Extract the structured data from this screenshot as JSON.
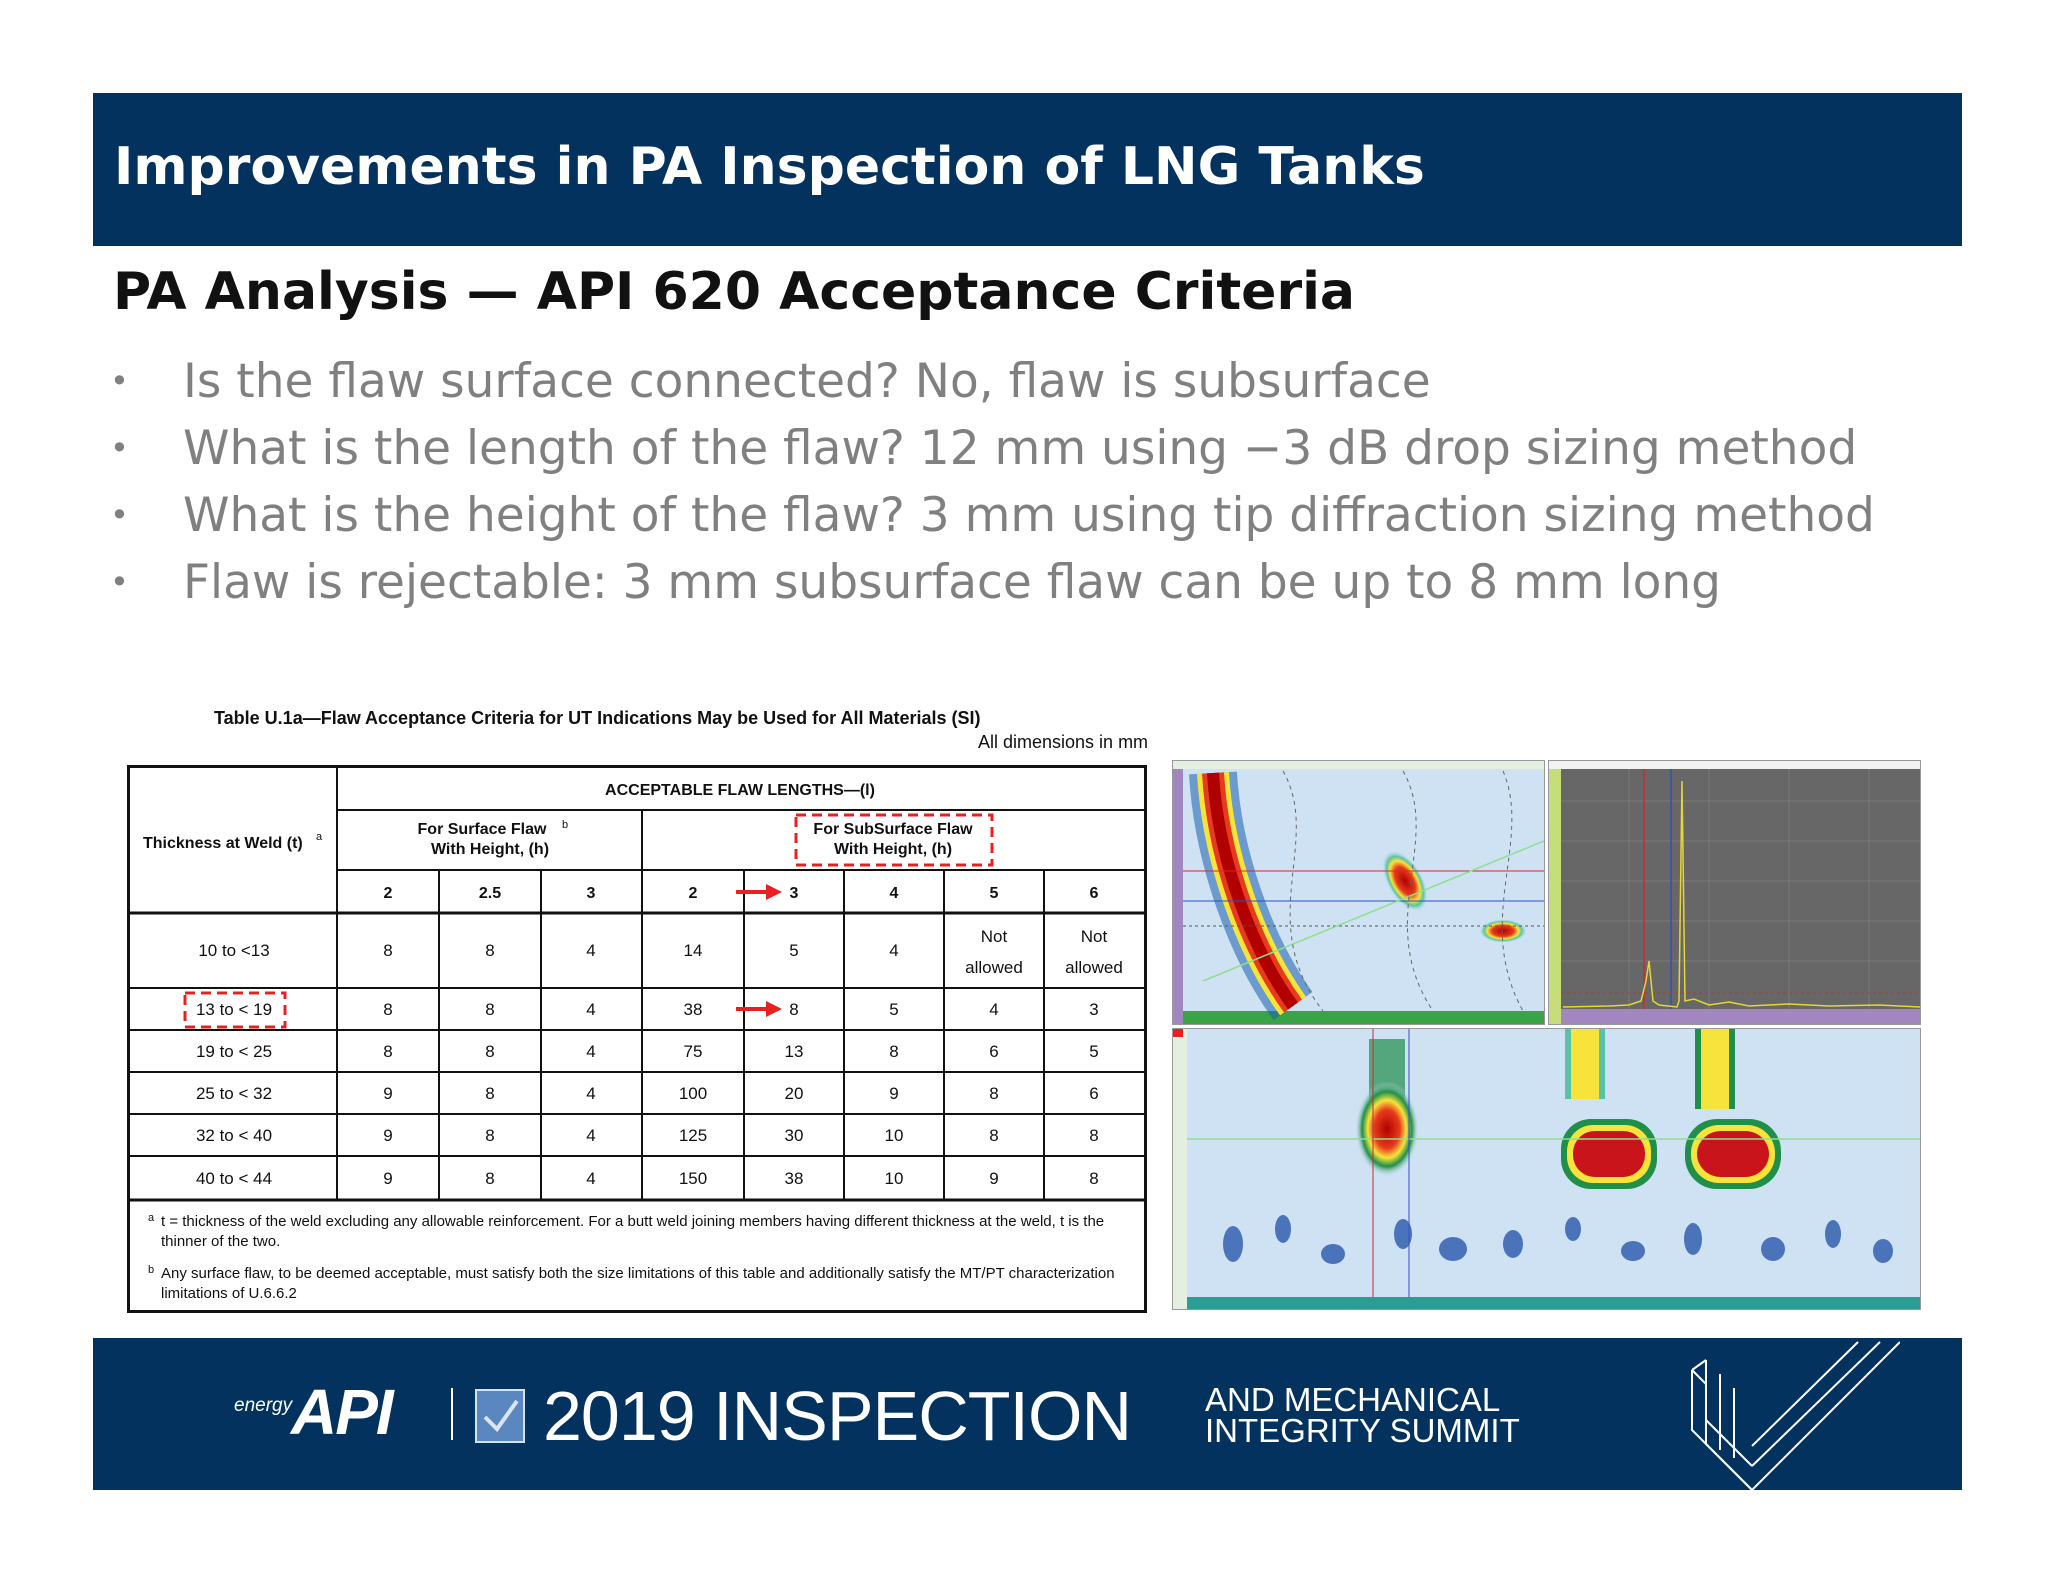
{
  "header": {
    "title": "Improvements in PA Inspection of LNG Tanks"
  },
  "subtitle": "PA Analysis — API 620 Acceptance Criteria",
  "bullets": [
    "Is the flaw surface connected?  No, flaw is subsurface",
    "What is the length of the flaw? 12 mm using −3 dB drop sizing method",
    "What is the height of the flaw? 3 mm using tip diffraction sizing method",
    "Flaw is rejectable: 3 mm subsurface flaw can be up to 8 mm long"
  ],
  "table": {
    "title": "Table U.1a—Flaw Acceptance Criteria for UT Indications May be Used for All Materials (SI)",
    "dimensions_note": "All dimensions in mm",
    "group_header": "ACCEPTABLE FLAW LENGTHS—(l)",
    "row_header": "Thickness at Weld (t)",
    "row_header_mark": "a",
    "surface_header_l1": "For Surface Flaw",
    "surface_header_mark": "b",
    "surface_header_l2": "With Height, (h)",
    "subsurface_header_l1": "For SubSurface Flaw",
    "subsurface_header_l2": "With Height, (h)",
    "heights": [
      "2",
      "2.5",
      "3",
      "2",
      "3",
      "4",
      "5",
      "6"
    ],
    "rows": [
      {
        "thickness": "10 to <13",
        "values": [
          "8",
          "8",
          "4",
          "14",
          "5",
          "4"
        ],
        "na_5": [
          "Not",
          "allowed"
        ],
        "na_6": [
          "Not",
          "allowed"
        ]
      },
      {
        "thickness": "13 to < 19",
        "values": [
          "8",
          "8",
          "4",
          "38",
          "8",
          "5",
          "4",
          "3"
        ]
      },
      {
        "thickness": "19 to < 25",
        "values": [
          "8",
          "8",
          "4",
          "75",
          "13",
          "8",
          "6",
          "5"
        ]
      },
      {
        "thickness": "25 to < 32",
        "values": [
          "9",
          "8",
          "4",
          "100",
          "20",
          "9",
          "8",
          "6"
        ]
      },
      {
        "thickness": "32 to < 40",
        "values": [
          "9",
          "8",
          "4",
          "125",
          "30",
          "10",
          "8",
          "8"
        ]
      },
      {
        "thickness": "40 to < 44",
        "values": [
          "9",
          "8",
          "4",
          "150",
          "38",
          "10",
          "9",
          "8"
        ]
      }
    ],
    "footnote_a_mark": "a",
    "footnote_a": "t = thickness of the weld excluding any allowable reinforcement. For a butt weld joining members having different thickness at the weld, t is the thinner of the two.",
    "footnote_b_mark": "b",
    "footnote_b": "Any surface flaw, to be deemed acceptable, must satisfy both the size limitations of this table and additionally satisfy the MT/PT characterization limitations of U.6.6.2",
    "highlight_color": "#e8201f"
  },
  "footer": {
    "energy": "energy",
    "api": "API",
    "year_title": "2019 INSPECTION",
    "line1": "AND MECHANICAL",
    "line2": "INTEGRITY SUMMIT"
  },
  "colors": {
    "navy": "#03325e",
    "scan_blue": "#cfe2f3",
    "flaw_red": "#c8141a"
  }
}
